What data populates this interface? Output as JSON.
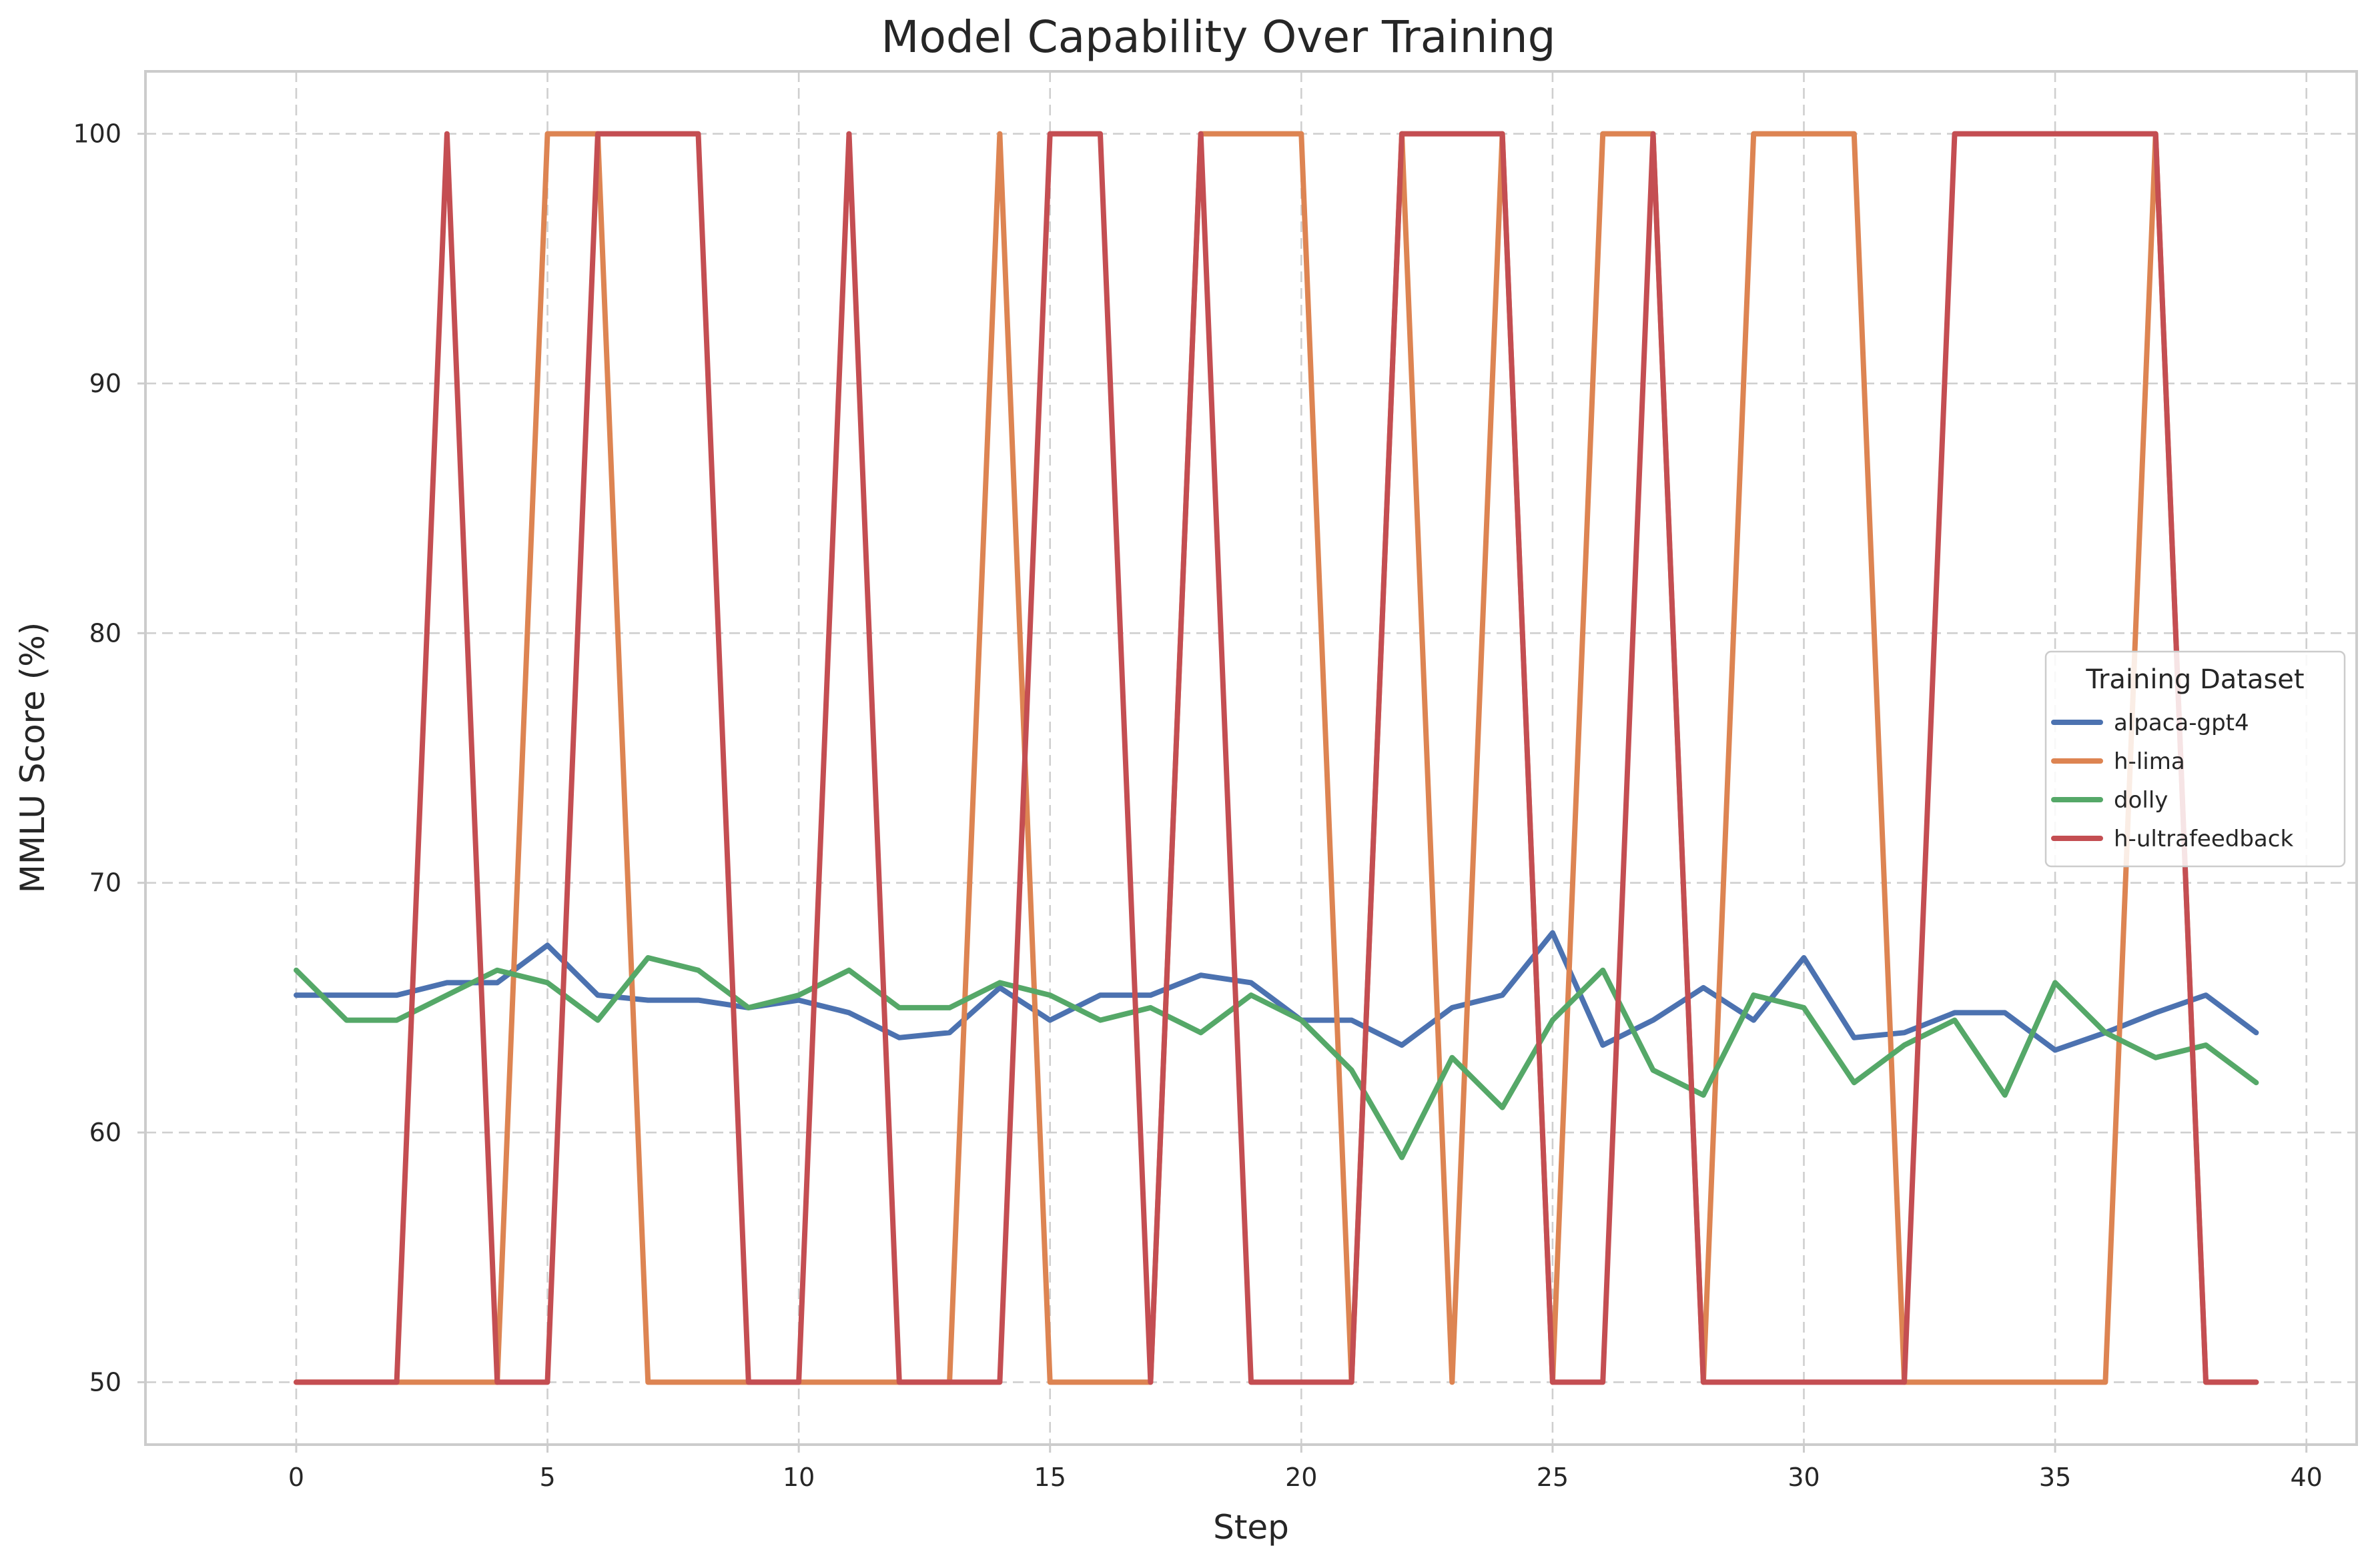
{
  "chart_data": {
    "type": "line",
    "title": "Model Capability Over Training",
    "xlabel": "Step",
    "ylabel": "MMLU Score (%)",
    "xlim": [
      -3,
      41
    ],
    "ylim": [
      47.5,
      102.5
    ],
    "xticks": [
      0,
      5,
      10,
      15,
      20,
      25,
      30,
      35,
      40
    ],
    "yticks": [
      50,
      60,
      70,
      80,
      90,
      100
    ],
    "grid": true,
    "legend": {
      "title": "Training Dataset",
      "placement": "center-right"
    },
    "x": [
      0,
      1,
      2,
      3,
      4,
      5,
      6,
      7,
      8,
      9,
      10,
      11,
      12,
      13,
      14,
      15,
      16,
      17,
      18,
      19,
      20,
      21,
      22,
      23,
      24,
      25,
      26,
      27,
      28,
      29,
      30,
      31,
      32,
      33,
      34,
      35,
      36,
      37,
      38,
      39
    ],
    "series": [
      {
        "name": "alpaca-gpt4",
        "color": "#4c72b0",
        "values": [
          65.5,
          65.5,
          65.5,
          66,
          66,
          67.5,
          65.5,
          65.3,
          65.3,
          65,
          65.3,
          64.8,
          63.8,
          64,
          65.8,
          64.5,
          65.5,
          65.5,
          66.3,
          66,
          64.5,
          64.5,
          63.5,
          65,
          65.5,
          68,
          63.5,
          64.5,
          65.8,
          64.5,
          67,
          63.8,
          64,
          64.8,
          64.8,
          63.3,
          64,
          64.8,
          65.5,
          64
        ]
      },
      {
        "name": "h-lima",
        "color": "#dd8452",
        "values": [
          50,
          50,
          50,
          50,
          50,
          100,
          100,
          50,
          50,
          50,
          50,
          50,
          50,
          50,
          100,
          50,
          50,
          50,
          100,
          100,
          100,
          50,
          100,
          50,
          100,
          50,
          100,
          100,
          50,
          100,
          100,
          100,
          50,
          50,
          50,
          50,
          50,
          100,
          50,
          50
        ]
      },
      {
        "name": "dolly",
        "color": "#55a868",
        "values": [
          66.5,
          64.5,
          64.5,
          65.5,
          66.5,
          66,
          64.5,
          67,
          66.5,
          65,
          65.5,
          66.5,
          65,
          65,
          66,
          65.5,
          64.5,
          65,
          64,
          65.5,
          64.5,
          62.5,
          59,
          63,
          61,
          64.5,
          66.5,
          62.5,
          61.5,
          65.5,
          65,
          62,
          63.5,
          64.5,
          61.5,
          66,
          64,
          63,
          63.5,
          62
        ]
      },
      {
        "name": "h-ultrafeedback",
        "color": "#c44e52",
        "values": [
          50,
          50,
          50,
          100,
          50,
          50,
          100,
          100,
          100,
          50,
          50,
          100,
          50,
          50,
          50,
          100,
          100,
          50,
          100,
          50,
          50,
          50,
          100,
          100,
          100,
          50,
          50,
          100,
          50,
          50,
          50,
          50,
          50,
          100,
          100,
          100,
          100,
          100,
          50,
          50
        ]
      }
    ]
  }
}
